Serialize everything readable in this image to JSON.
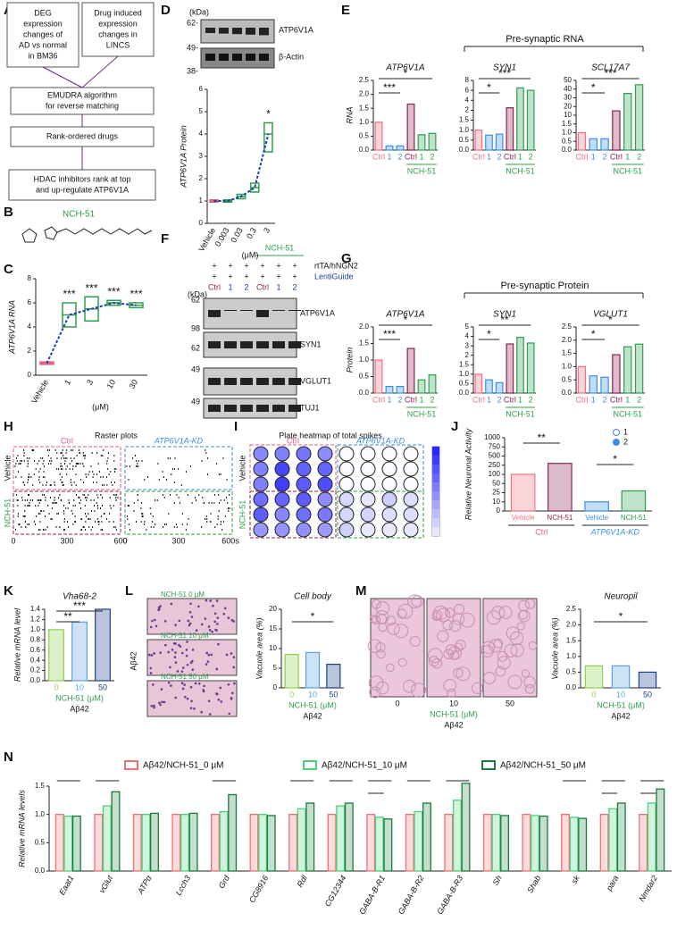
{
  "letters": {
    "A": "A",
    "B": "B",
    "C": "C",
    "D": "D",
    "E": "E",
    "F": "F",
    "G": "G",
    "H": "H",
    "I": "I",
    "J": "J",
    "K": "K",
    "L": "L",
    "M": "M",
    "N": "N"
  },
  "flowchart": {
    "boxes": [
      [
        "DEG",
        "expression",
        "changes of",
        "AD vs normal",
        "in BM36"
      ],
      [
        "Drug induced",
        "expression",
        "changes in",
        "LINCS"
      ],
      [
        "EMUDRA algorithm",
        "for reverse matching"
      ],
      [
        "Rank-ordered drugs"
      ],
      [
        "HDAC inhibitors rank at top",
        "and  up-regulate ATP6V1A"
      ]
    ]
  },
  "structure": {
    "name": "NCH-51"
  },
  "headers": {
    "E": "Pre-synaptic RNA",
    "G": "Pre-synaptic Protein"
  },
  "blot_D": {
    "unit": "(kDa)",
    "markers": [
      "62-",
      "49-",
      "38-"
    ],
    "bands": [
      "ATP6V1A",
      "β-Actin"
    ]
  },
  "blot_F": {
    "unit": "(kDa)",
    "plus": "+",
    "rows": [
      "rtTA/hNGN2",
      "LentiGuide"
    ],
    "lanes": [
      "Ctrl",
      "1",
      "2",
      "Ctrl",
      "1",
      "2"
    ],
    "group": "NCH-51",
    "bands": [
      "ATP6V1A",
      "SYN1",
      "VGLUT1",
      "TUJ1"
    ],
    "markers": [
      "62",
      "98",
      "62",
      "49",
      "49"
    ]
  },
  "raster_H": {
    "title": "Raster plots",
    "cols": [
      "Ctrl",
      "ATP6V1A-KD"
    ],
    "rows": [
      "Vehicle",
      "NCH-51"
    ],
    "xticks": [
      "0",
      "300",
      "600",
      "0",
      "300",
      "600s"
    ]
  },
  "heatmap_I": {
    "title": "Plate heatmap of total spikes",
    "cols": [
      "Ctrl",
      "ATP6V1A-KD"
    ],
    "rows": [
      "Vehicle",
      "NCH-51"
    ]
  },
  "images_L": {
    "labels": [
      "NCH-51 0 μM",
      "NCH-51 10 μM",
      "NCH-51 50 μM"
    ],
    "side": "Aβ42"
  },
  "images_M": {
    "labels": [
      "0",
      "10",
      "50"
    ],
    "xlabel": "NCH-51 (μM)",
    "sub": "Aβ42"
  },
  "charts": {
    "C": {
      "type": "box",
      "ylabel": "ATP6V1A RNA",
      "categories": [
        "Vehicle",
        "1",
        "3",
        "10",
        "30"
      ],
      "xlabel": "(μM)",
      "medians": [
        1,
        5,
        5.5,
        6,
        5.8
      ],
      "q1": [
        0.9,
        4,
        4.5,
        5.8,
        5.6
      ],
      "q3": [
        1.1,
        6,
        6.5,
        6.2,
        6
      ],
      "colors": [
        "#e0607e",
        "#2e9e4e",
        "#2e9e4e",
        "#2e9e4e",
        "#2e9e4e"
      ],
      "yticks": [
        0,
        2,
        4,
        6,
        8
      ],
      "sig": [
        "***",
        "***",
        "***",
        "***"
      ]
    },
    "D": {
      "type": "box",
      "ylabel": "ATP6V1A Protein",
      "categories": [
        "Vehicle",
        "0.003",
        "0.03",
        "0.3",
        "3"
      ],
      "xlabel": "(μM)",
      "medians": [
        1,
        1,
        1.2,
        1.6,
        4
      ],
      "q1": [
        0.95,
        0.95,
        1.1,
        1.4,
        3.2
      ],
      "q3": [
        1.05,
        1.05,
        1.3,
        1.8,
        4.5
      ],
      "colors": [
        "#e0607e",
        "#2e9e4e",
        "#2e9e4e",
        "#2e9e4e",
        "#2e9e4e"
      ],
      "yticks": [
        0,
        1,
        2,
        3,
        4,
        5,
        6
      ],
      "sig": [
        "*"
      ]
    },
    "E1": {
      "type": "bar",
      "title": "ATP6V1A",
      "ylabel": "RNA",
      "categories": [
        "Ctrl",
        "1",
        "2",
        "Ctrl",
        "1",
        "2"
      ],
      "values": [
        1.0,
        0.15,
        0.15,
        1.65,
        0.55,
        0.6
      ],
      "colors": [
        "#f07080",
        "#3a8ee6",
        "#3a8ee6",
        "#8b2252",
        "#2e9e4e",
        "#2e9e4e"
      ],
      "yticks": [
        {
          "value": 0,
          "label": "0.0"
        },
        0.5,
        {
          "value": 1,
          "label": "1.0"
        },
        1.5,
        {
          "value": 2,
          "label": "2.0"
        },
        2.5
      ],
      "group_label": "NCH-51",
      "sig": [
        "***",
        "*"
      ]
    },
    "E2": {
      "type": "bar",
      "title": "SYN1",
      "categories": [
        "Ctrl",
        "1",
        "2",
        "Ctrl",
        "1",
        "2"
      ],
      "values": [
        1.0,
        0.75,
        0.8,
        2.5,
        6.5,
        6
      ],
      "colors": [
        "#f07080",
        "#3a8ee6",
        "#3a8ee6",
        "#8b2252",
        "#2e9e4e",
        "#2e9e4e"
      ],
      "yticks": [
        {
          "value": 0,
          "label": "0.0"
        },
        0.5,
        {
          "value": 1,
          "label": "1.0"
        },
        1.5,
        2,
        4,
        6,
        8
      ],
      "group_label": "NCH-51",
      "sig": [
        "*",
        "***"
      ]
    },
    "E3": {
      "type": "bar",
      "title": "SCL17A7",
      "categories": [
        "Ctrl",
        "1",
        "2",
        "Ctrl",
        "1",
        "2"
      ],
      "values": [
        1.0,
        0.65,
        0.65,
        15,
        35,
        45
      ],
      "colors": [
        "#f07080",
        "#3a8ee6",
        "#3a8ee6",
        "#8b2252",
        "#2e9e4e",
        "#2e9e4e"
      ],
      "yticks": [
        {
          "value": 0,
          "label": "0.0"
        },
        0.5,
        {
          "value": 1,
          "label": "1.0"
        },
        1.5,
        10,
        20,
        30,
        40,
        50
      ],
      "group_label": "NCH-51",
      "sig": [
        "*",
        "***"
      ]
    },
    "G1": {
      "type": "bar",
      "title": "ATP6V1A",
      "ylabel": "Protein",
      "categories": [
        "Ctrl",
        "1",
        "2",
        "Ctrl",
        "1",
        "2"
      ],
      "values": [
        1.0,
        0.2,
        0.2,
        1.35,
        0.4,
        0.55
      ],
      "colors": [
        "#f07080",
        "#3a8ee6",
        "#3a8ee6",
        "#8b2252",
        "#2e9e4e",
        "#2e9e4e"
      ],
      "yticks": [
        {
          "value": 0,
          "label": "0.0"
        },
        0.5,
        {
          "value": 1,
          "label": "1.0"
        },
        1.5,
        {
          "value": 2,
          "label": "2.0"
        }
      ],
      "group_label": "NCH-51",
      "sig": [
        "***",
        "*"
      ]
    },
    "G2": {
      "type": "bar",
      "title": "SYN1",
      "categories": [
        "Ctrl",
        "1",
        "2",
        "Ctrl",
        "1",
        "2"
      ],
      "values": [
        1.0,
        0.7,
        0.55,
        3.2,
        3.9,
        3.3
      ],
      "colors": [
        "#f07080",
        "#3a8ee6",
        "#3a8ee6",
        "#8b2252",
        "#2e9e4e",
        "#2e9e4e"
      ],
      "yticks": [
        {
          "value": 0,
          "label": "0.0"
        },
        0.5,
        {
          "value": 1,
          "label": "1.0"
        },
        1.5,
        2,
        3,
        4,
        5
      ],
      "group_label": "NCH-51",
      "sig": [
        "*",
        "**"
      ]
    },
    "G3": {
      "type": "bar",
      "title": "VGLUT1",
      "categories": [
        "Ctrl",
        "1",
        "2",
        "Ctrl",
        "1",
        "2"
      ],
      "values": [
        1.0,
        0.65,
        0.6,
        1.45,
        1.75,
        1.85
      ],
      "colors": [
        "#f07080",
        "#3a8ee6",
        "#3a8ee6",
        "#8b2252",
        "#2e9e4e",
        "#2e9e4e"
      ],
      "yticks": [
        {
          "value": 0,
          "label": "0.0"
        },
        0.5,
        {
          "value": 1,
          "label": "1.0"
        },
        1.5,
        {
          "value": 2,
          "label": "2.0"
        },
        2.5
      ],
      "group_label": "NCH-51",
      "sig": [
        "*",
        "*"
      ]
    },
    "J": {
      "type": "bar",
      "ylabel": "Relative Neuronal Activity",
      "categories": [
        "Vehicle",
        "NCH-51",
        "Vehicle",
        "NCH-51"
      ],
      "values": [
        100,
        300,
        10,
        30
      ],
      "colors": [
        "#f07080",
        "#8b2252",
        "#3a8ee6",
        "#2e9e4e"
      ],
      "yticks": [
        0,
        10,
        25,
        50,
        100,
        250,
        500,
        750,
        1000
      ],
      "group_labels": [
        "Ctrl",
        "ATP6V1A-KD"
      ],
      "legend": [
        "1",
        "2"
      ],
      "sig": [
        "**",
        "*"
      ]
    },
    "K": {
      "type": "bar",
      "title": "Vha68-2",
      "ylabel": "Relative mRNA level",
      "categories": [
        "0",
        "10",
        "50"
      ],
      "values": [
        1.0,
        1.15,
        1.4
      ],
      "colors": [
        "#8ed04a",
        "#5aa0e6",
        "#1c3f8c"
      ],
      "yticks": [
        {
          "value": 0,
          "label": "0.0"
        },
        0.2,
        0.4,
        0.6,
        0.8,
        {
          "value": 1,
          "label": "1.0"
        },
        1.2,
        1.4
      ],
      "xlabel": "NCH-51 (μM)",
      "sub": "Aβ42",
      "sig": [
        "**",
        "***"
      ]
    },
    "L": {
      "type": "bar",
      "title": "Cell body",
      "ylabel": "Vacuole area (%)",
      "categories": [
        "0",
        "10",
        "50"
      ],
      "values": [
        8.5,
        9,
        6
      ],
      "colors": [
        "#8ed04a",
        "#5aa0e6",
        "#1c3f8c"
      ],
      "yticks": [
        0,
        5,
        10,
        15,
        20
      ],
      "xlabel": "NCH-51 (μM)",
      "sub": "Aβ42",
      "sig": [
        "*"
      ]
    },
    "M": {
      "type": "bar",
      "title": "Neuropil",
      "ylabel": "Vacuole area (%)",
      "categories": [
        "0",
        "10",
        "50"
      ],
      "values": [
        0.7,
        0.7,
        0.5
      ],
      "colors": [
        "#8ed04a",
        "#5aa0e6",
        "#1c3f8c"
      ],
      "yticks": [
        {
          "value": 0,
          "label": "0.0"
        },
        0.5,
        {
          "value": 1,
          "label": "1.0"
        },
        1.5,
        {
          "value": 2,
          "label": "2.0"
        },
        2.5
      ],
      "xlabel": "NCH-51 (μM)",
      "sub": "Aβ42",
      "sig": [
        "*"
      ]
    },
    "N": {
      "type": "grouped_bar",
      "ylabel": "Relative mRNA levels",
      "categories": [
        "Eaat1",
        "vGlut",
        "ATPα",
        "Lcch3",
        "Grd",
        "CG8916",
        "Rdl",
        "CG12344",
        "GABA-B-R1",
        "GABA-B-R2",
        "GABA-B-R3",
        "Sh",
        "Shab",
        "sk",
        "para",
        "Nmdar2"
      ],
      "series": [
        {
          "name": "Aβ42/NCH-51_0 μM",
          "color": "#f07070",
          "values": [
            1,
            1,
            1,
            1,
            1,
            1,
            1,
            1,
            1,
            1,
            1,
            1,
            1,
            1,
            1,
            1
          ]
        },
        {
          "name": "Aβ42/NCH-51_10 μM",
          "color": "#4cd17a",
          "values": [
            0.97,
            1.15,
            1,
            1,
            1.05,
            1,
            1.1,
            1.15,
            0.95,
            1.05,
            1.25,
            1,
            0.98,
            0.95,
            1.1,
            1.2
          ]
        },
        {
          "name": "Aβ42/NCH-51_50 μM",
          "color": "#1a7a3a",
          "values": [
            0.97,
            1.4,
            1.02,
            1.02,
            1.35,
            0.98,
            1.2,
            1.2,
            0.92,
            1.2,
            1.55,
            0.98,
            0.97,
            0.93,
            1.2,
            1.45
          ]
        }
      ],
      "yticks": [
        {
          "value": 0,
          "label": "0.0"
        },
        0.5,
        {
          "value": 1,
          "label": "1.0"
        },
        1.5
      ],
      "sig": [
        [
          "*"
        ],
        [
          "**"
        ],
        [],
        [],
        [
          "*"
        ],
        [],
        [
          "**"
        ],
        [
          "**"
        ],
        [
          "*",
          "*"
        ],
        [
          "***"
        ],
        [
          "***"
        ],
        [],
        [],
        [
          "**"
        ],
        [
          "**",
          "**"
        ],
        [
          "***",
          "**"
        ]
      ]
    }
  }
}
